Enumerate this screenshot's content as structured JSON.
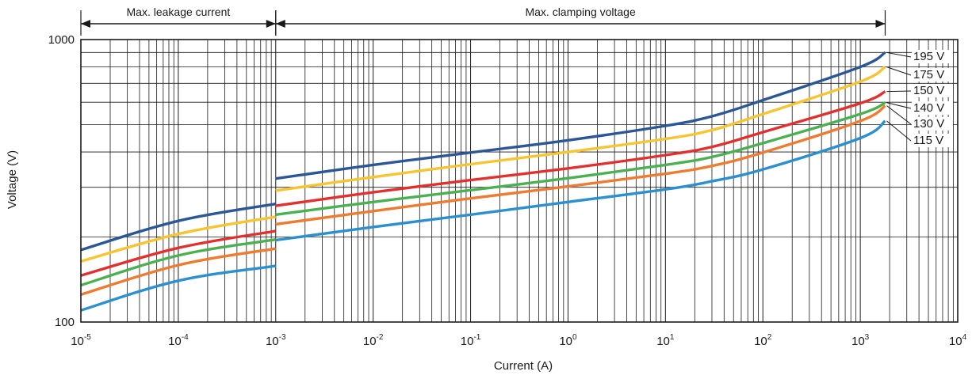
{
  "chart_data": {
    "type": "line",
    "xscale": "log",
    "yscale": "log",
    "xlim": [
      1e-05,
      10000
    ],
    "ylim": [
      100,
      1000
    ],
    "grid": true,
    "xlabel": "Current (A)",
    "ylabel": "Voltage (V)",
    "x_ticks": [
      {
        "base": "10",
        "exp": "-5",
        "value": 1e-05
      },
      {
        "base": "10",
        "exp": "-4",
        "value": 0.0001
      },
      {
        "base": "10",
        "exp": "-3",
        "value": 0.001
      },
      {
        "base": "10",
        "exp": "-2",
        "value": 0.01
      },
      {
        "base": "10",
        "exp": "-1",
        "value": 0.1
      },
      {
        "base": "10",
        "exp": "0",
        "value": 1
      },
      {
        "base": "10",
        "exp": "1",
        "value": 10
      },
      {
        "base": "10",
        "exp": "2",
        "value": 100
      },
      {
        "base": "10",
        "exp": "3",
        "value": 1000
      },
      {
        "base": "10",
        "exp": "4",
        "value": 10000
      }
    ],
    "y_ticks": [
      {
        "label": "100",
        "value": 100
      },
      {
        "label": "1000",
        "value": 1000
      }
    ],
    "regions": [
      {
        "label": "Max. leakage current",
        "from": 1e-05,
        "to": 0.001
      },
      {
        "label": "Max. clamping voltage",
        "from": 0.001,
        "to": 1800
      }
    ],
    "series": [
      {
        "name": "195 V",
        "color": "#2b5797",
        "segments": [
          [
            [
              1e-05,
              180
            ],
            [
              0.0001,
              228
            ],
            [
              0.001,
              262
            ]
          ],
          [
            [
              0.001,
              322
            ],
            [
              0.01,
              360
            ],
            [
              0.1,
              398
            ],
            [
              1,
              440
            ],
            [
              10,
              495
            ],
            [
              30,
              535
            ],
            [
              100,
              610
            ],
            [
              1000,
              800
            ],
            [
              1800,
              900
            ]
          ]
        ]
      },
      {
        "name": "175 V",
        "color": "#f7c531",
        "segments": [
          [
            [
              1e-05,
              164
            ],
            [
              0.0001,
              205
            ],
            [
              0.001,
              236
            ]
          ],
          [
            [
              0.001,
              292
            ],
            [
              0.01,
              326
            ],
            [
              0.1,
              362
            ],
            [
              1,
              400
            ],
            [
              10,
              445
            ],
            [
              30,
              478
            ],
            [
              100,
              545
            ],
            [
              1000,
              710
            ],
            [
              1800,
              800
            ]
          ]
        ]
      },
      {
        "name": "150 V",
        "color": "#e2302e",
        "segments": [
          [
            [
              1e-05,
              146
            ],
            [
              0.0001,
              183
            ],
            [
              0.001,
              210
            ]
          ],
          [
            [
              0.001,
              258
            ],
            [
              0.01,
              288
            ],
            [
              0.1,
              318
            ],
            [
              1,
              350
            ],
            [
              10,
              390
            ],
            [
              30,
              417
            ],
            [
              100,
              470
            ],
            [
              1000,
              595
            ],
            [
              1800,
              655
            ]
          ]
        ]
      },
      {
        "name": "140 V",
        "color": "#4bb050",
        "segments": [
          [
            [
              1e-05,
              135
            ],
            [
              0.0001,
              172
            ],
            [
              0.001,
              196
            ]
          ],
          [
            [
              0.001,
              240
            ],
            [
              0.01,
              266
            ],
            [
              0.1,
              293
            ],
            [
              1,
              323
            ],
            [
              10,
              360
            ],
            [
              30,
              384
            ],
            [
              100,
              430
            ],
            [
              1000,
              545
            ],
            [
              1800,
              598
            ]
          ]
        ]
      },
      {
        "name": "130 V",
        "color": "#ee7b30",
        "segments": [
          [
            [
              1e-05,
              125
            ],
            [
              0.0001,
              159
            ],
            [
              0.001,
              182
            ]
          ],
          [
            [
              0.001,
              222
            ],
            [
              0.01,
              247
            ],
            [
              0.1,
              274
            ],
            [
              1,
              302
            ],
            [
              10,
              335
            ],
            [
              30,
              357
            ],
            [
              100,
              398
            ],
            [
              1000,
              515
            ],
            [
              1800,
              583
            ]
          ]
        ]
      },
      {
        "name": "115 V",
        "color": "#2c8fcf",
        "segments": [
          [
            [
              1e-05,
              110
            ],
            [
              0.0001,
              140
            ],
            [
              0.001,
              158
            ]
          ],
          [
            [
              0.001,
              195
            ],
            [
              0.01,
              217
            ],
            [
              0.1,
              240
            ],
            [
              1,
              266
            ],
            [
              10,
              295
            ],
            [
              30,
              315
            ],
            [
              100,
              347
            ],
            [
              1000,
              448
            ],
            [
              1800,
              515
            ]
          ]
        ]
      }
    ]
  }
}
